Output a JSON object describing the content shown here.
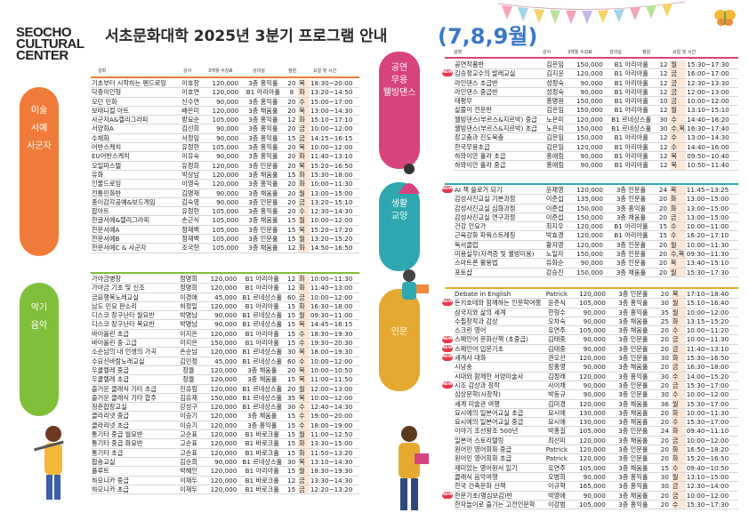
{
  "logo": [
    "SEOCHO",
    "CULTURAL",
    "CENTER"
  ],
  "title": "서초문화대학 2025년 3분기 프로그램 안내",
  "title_months": "(7,8,9월)",
  "headers": {
    "name": "강좌",
    "teacher": "강사",
    "fee": "3개월 수강료",
    "room": "강의실",
    "cap": "정원",
    "day": "요일 및 시간"
  },
  "categories": {
    "art": [
      "미술",
      "서예",
      "사군자"
    ],
    "music": [
      "악기",
      "음악"
    ],
    "perf": [
      "공연",
      "무용",
      "웰빙댄스"
    ],
    "life": [
      "생활",
      "교양"
    ],
    "hum": [
      "인문"
    ]
  },
  "new_badge": "NEW",
  "art": [
    [
      "기초부터 시작하는 펜드로잉",
      "이호창",
      "120,000",
      "3층 홍익홀",
      "20",
      "목",
      "18:30~20:00"
    ],
    [
      "닥종이인형",
      "이호연",
      "120,000",
      "B1 아리아홀",
      "8",
      "화",
      "13:20~14:50"
    ],
    [
      "모던 민화",
      "신수연",
      "90,000",
      "3층 홍익홀",
      "20",
      "수",
      "15:00~17:00"
    ],
    [
      "보태니컬 아트",
      "배은미",
      "120,000",
      "3층 채움홀",
      "20",
      "목",
      "13:00~14:30"
    ],
    [
      "사군자A&캘리그라피",
      "방묘순",
      "105,000",
      "3층 홍익홀",
      "12",
      "화",
      "15:10~17:10"
    ],
    [
      "서양화A",
      "김선희",
      "90,000",
      "3층 홍익홀",
      "20",
      "금",
      "10:00~12:00"
    ],
    [
      "수채화",
      "서정임",
      "90,000",
      "3층 홍익홀",
      "15",
      "금",
      "14:15~16:15"
    ],
    [
      "어반스케치",
      "유정현",
      "105,000",
      "3층 홍익홀",
      "20",
      "목",
      "10:00~12:00"
    ],
    [
      "EU어반스케치",
      "이유숙",
      "90,000",
      "3층 홍익홀",
      "20",
      "화",
      "11:40~13:10"
    ],
    [
      "오일파스텔",
      "유정희",
      "120,000",
      "3층 인문홀",
      "20",
      "목",
      "15:20~16:50"
    ],
    [
      "유화",
      "박상남",
      "120,000",
      "3층 채움홀",
      "15",
      "화",
      "15:30~18:00"
    ],
    [
      "인물드로잉",
      "이영숙",
      "120,000",
      "3층 홍익홀",
      "20",
      "화",
      "10:00~11:30"
    ],
    [
      "전통민화반",
      "김명재",
      "90,000",
      "3층 채움홀",
      "20",
      "월",
      "13:00~15:00"
    ],
    [
      "종이감각공예&보드게임",
      "김숙영",
      "90,000",
      "3층 인문홀",
      "20",
      "금",
      "13:20~15:10"
    ],
    [
      "팝아트",
      "유정현",
      "105,000",
      "3층 홍익홀",
      "20",
      "수",
      "12:30~14:30"
    ],
    [
      "한글서예&캘리그라피",
      "손근식",
      "105,000",
      "3층 채움홀",
      "15",
      "월",
      "10:00~12:00"
    ],
    [
      "한문서예A",
      "정재백",
      "105,000",
      "3층 인문홀",
      "15",
      "목",
      "15:20~17:20"
    ],
    [
      "한문서예B",
      "정재백",
      "105,000",
      "3층 인문홀",
      "15",
      "월",
      "13:20~15:20"
    ],
    [
      "한문서예C & 사군자",
      "조국현",
      "105,000",
      "3층 채움홀",
      "12",
      "화",
      "14:50~16:50"
    ]
  ],
  "music": [
    [
      "가야금병창",
      "정명희",
      "120,000",
      "B1 아리아홀",
      "12",
      "화",
      "10:00~11:30"
    ],
    [
      "가야금 기초 및 신조",
      "정명희",
      "120,000",
      "B1 아리아홀",
      "12",
      "화",
      "11:40~13:00"
    ],
    [
      "금요행복노래교실",
      "이경애",
      "45,000",
      "B1 르네상스홀",
      "60",
      "금",
      "10:00~12:00"
    ],
    [
      "남도 민요 판소리",
      "허정일",
      "120,000",
      "B1 아리아홀",
      "15",
      "화",
      "16:30~18:00"
    ],
    [
      "디스코 장구난타 월요반",
      "박명남",
      "90,000",
      "B1 르네상스홀",
      "15",
      "월",
      "09:30~11:00"
    ],
    [
      "디스코 장구난타 목요반",
      "박명남",
      "90,000",
      "B1 르네상스홀",
      "15",
      "목",
      "14:45~16:15"
    ],
    [
      "바이올린 초급",
      "이지은",
      "120,000",
      "B1 아리아홀",
      "15",
      "수",
      "18:30~19:30"
    ],
    [
      "바이올린 중·고급",
      "이지은",
      "150,000",
      "B1 아리아홀",
      "15",
      "수",
      "19:30~20:30"
    ],
    [
      "소순남의 내 인생의 가곡",
      "손순남",
      "120,000",
      "B1 르네상스홀",
      "30",
      "목",
      "18:00~19:30"
    ],
    [
      "수요신바람노래교실",
      "김민정",
      "45,000",
      "B1 르네상스홀",
      "60",
      "수",
      "10:00~12:00"
    ],
    [
      "우쿨렐레 중급",
      "장율",
      "120,000",
      "3층 채움홀",
      "20",
      "목",
      "10:00~10:50"
    ],
    [
      "우쿨렐레 초급",
      "장율",
      "120,000",
      "3층 채움홀",
      "15",
      "목",
      "11:00~11:50"
    ],
    [
      "즐거운 클래식 기타 초급",
      "진유림",
      "120,000",
      "B1 르네상스홀",
      "20",
      "월",
      "12:00~13:00"
    ],
    [
      "즐거운 클래식 기타 합주",
      "김유재",
      "150,000",
      "B1 르네상스홀",
      "35",
      "목",
      "10:00~12:00"
    ],
    [
      "청춘합창교실",
      "강성구",
      "120,000",
      "B1 르네상스홀",
      "30",
      "수",
      "12:40~14:30"
    ],
    [
      "클라리넷 중급",
      "이승기",
      "120,000",
      "3층 채움홀",
      "15",
      "수",
      "19:00~20:00"
    ],
    [
      "클라리넷 초급",
      "이승기",
      "120,000",
      "3층 홍익홀",
      "15",
      "수",
      "18:00~19:00"
    ],
    [
      "통기타 중급 월요반",
      "고순표",
      "120,000",
      "B1 바로크홀",
      "15",
      "월",
      "11:00~12:50"
    ],
    [
      "통기타 중급 화요반",
      "고순표",
      "120,000",
      "B1 바로크홀",
      "15",
      "화",
      "13:30~15:00"
    ],
    [
      "통기타 초급",
      "고순표",
      "120,000",
      "B1 바로크홀",
      "15",
      "화",
      "11:50~13:20"
    ],
    [
      "팝송교실",
      "김순희",
      "90,000",
      "B1 르네상스홀",
      "30",
      "목",
      "13:10~14:30"
    ],
    [
      "플루트",
      "박혜인",
      "120,000",
      "B1 아리아홀",
      "15",
      "월",
      "18:30~19:30"
    ],
    [
      "하모니카 중급",
      "이재두",
      "120,000",
      "B1 바로크홀",
      "12",
      "금",
      "13:30~14:30"
    ],
    [
      "하모니카 초급",
      "이재두",
      "120,000",
      "B1 바로크홀",
      "15",
      "금",
      "12:20~13:20"
    ]
  ],
  "perf": [
    [
      "공연작품반",
      "김은임",
      "150,000",
      "B1 아리아홀",
      "12",
      "월",
      "15:30~17:30",
      false
    ],
    [
      "김승정교수의 발레교실",
      "김지윤",
      "120,000",
      "B1 아리아홀",
      "12",
      "금",
      "16:00~17:00",
      true
    ],
    [
      "라인댄스 초급반",
      "성정숙",
      "90,000",
      "B1 아리아홀",
      "12",
      "금",
      "12:30~13:30",
      false
    ],
    [
      "라인댄스 중급반",
      "성정숙",
      "90,000",
      "B1 아리아홀",
      "12",
      "금",
      "12:00~13:00",
      false
    ],
    [
      "태평무",
      "홍명원",
      "150,000",
      "B1 아리아홀",
      "10",
      "금",
      "10:00~12:00",
      false
    ],
    [
      "살풀이 전문반",
      "김은임",
      "150,000",
      "B1 아리아홀",
      "12",
      "월",
      "13:10~15:10",
      false
    ],
    [
      "웰빙댄스(부르스&지르박) 중급",
      "노은미",
      "120,000",
      "B1 르네상스홀",
      "30",
      "수",
      "14:40~16:20",
      false
    ],
    [
      "웰빙댄스(부르스&지르박) 초급",
      "노은미",
      "150,000",
      "B1 르네상스홀",
      "30",
      "수,목",
      "16:30~17:40",
      false
    ],
    [
      "장고춤과 진도북춤",
      "김은임",
      "150,000",
      "B1 아리아홀",
      "12",
      "수",
      "13:00~14:30",
      false
    ],
    [
      "한국무용초급",
      "김은임",
      "120,000",
      "B1 아리아홀",
      "12",
      "수",
      "14:40~16:00",
      false
    ],
    [
      "하와이안 훌라 초급",
      "홍애림",
      "90,000",
      "B1 아리아홀",
      "12",
      "목",
      "09:50~10:40",
      false
    ],
    [
      "하와이안 훌라 중급",
      "홍애림",
      "90,000",
      "B1 아리아홀",
      "12",
      "목",
      "10:50~11:40",
      false
    ]
  ],
  "life": [
    [
      "AI 책 쓸로거 되기",
      "윤재영",
      "120,000",
      "3층 인문홀",
      "24",
      "목",
      "11:45~13:25",
      true
    ],
    [
      "감성사진교실 기본과정",
      "이준섭",
      "135,000",
      "3층 인문홀",
      "20",
      "화",
      "13:00~15:00",
      false
    ],
    [
      "감성사진교실 심화과정",
      "이준섭",
      "150,000",
      "3층 홍익홀",
      "20",
      "화",
      "13:00~15:00",
      false
    ],
    [
      "감성사진교실 연구과정",
      "이준섭",
      "150,000",
      "3층 채움홀",
      "20",
      "금",
      "13:00~15:00",
      false
    ],
    [
      "건강 인요가",
      "최지우",
      "120,000",
      "B1 아리아홀",
      "15",
      "수",
      "10:00~11:00",
      false
    ],
    [
      "근육강화 파워스트레칭",
      "박효경",
      "120,000",
      "B1 아리아홀",
      "15",
      "수",
      "16:20~17:10",
      false
    ],
    [
      "독서클럽",
      "황지영",
      "120,000",
      "3층 인문홀",
      "20",
      "월",
      "10:00~11:30",
      false
    ],
    [
      "미용실무(자격증 및 웰빙미용)",
      "노일자",
      "150,000",
      "3층 인문홀",
      "20",
      "수,목",
      "09:30~11:30",
      false
    ],
    [
      "스마트폰 활용법",
      "유화순",
      "90,000",
      "3층 인문홀",
      "20",
      "목",
      "13:40~15:10",
      false
    ],
    [
      "포토샵",
      "강승진",
      "150,000",
      "3층 채움홀",
      "20",
      "월",
      "15:30~17:30",
      false
    ]
  ],
  "hum": [
    [
      "Debate in English",
      "Patrick",
      "120,000",
      "3층 인문홀",
      "20",
      "목",
      "17:10~18:40",
      false
    ],
    [
      "돈키호테와 함께하는 인문학여행",
      "윤준식",
      "105,000",
      "3층 홍익홀",
      "30",
      "월",
      "15:10~16:40",
      true
    ],
    [
      "삼국지와 삶의 세계",
      "한형수",
      "90,000",
      "3층 홍익홀",
      "35",
      "월",
      "10:00~12:00",
      false
    ],
    [
      "수필창작과 감상",
      "오차숙",
      "90,000",
      "3층 채움홀",
      "25",
      "화",
      "13:15~15:20",
      false
    ],
    [
      "스크린 영어",
      "유연주",
      "105,000",
      "3층 채움홀",
      "20",
      "수",
      "10:00~11:20",
      false
    ],
    [
      "스페인어 문화산책 (초중급)",
      "김태중",
      "90,000",
      "3층 인문홀",
      "20",
      "금",
      "10:00~11:30",
      true
    ],
    [
      "스페인어 입문기초",
      "김태중",
      "90,000",
      "3층 인문홀",
      "20",
      "금",
      "11:40~13:10",
      true
    ],
    [
      "세계사 대화",
      "권오선",
      "120,000",
      "3층 인문홀",
      "30",
      "화",
      "15:30~16:50",
      true
    ],
    [
      "시낭송",
      "장홍영",
      "90,000",
      "3층 채움홀",
      "20",
      "금",
      "16:30~18:00",
      false
    ],
    [
      "시대와 함께한 서양미술사",
      "김정래",
      "120,000",
      "3층 홍익홀",
      "30",
      "수",
      "14:00~15:20",
      false
    ],
    [
      "시조 감상과 창작",
      "사이채",
      "90,000",
      "3층 인문홀",
      "20",
      "금",
      "15:30~17:00",
      true
    ],
    [
      "심상문학(시창작)",
      "박동규",
      "90,000",
      "3층 인문홀",
      "30",
      "수",
      "10:00~12:00",
      false
    ],
    [
      "세계 미술관 여행",
      "김미경",
      "120,000",
      "3층 채움홀",
      "36",
      "월",
      "15:30~17:00",
      false
    ],
    [
      "요시에의 일본어교실 초급",
      "요시에",
      "130,000",
      "3층 채움홀",
      "20",
      "화",
      "10:00~11:30",
      false
    ],
    [
      "요시에의 일본어교실 중급",
      "요시에",
      "130,000",
      "3층 채움홀",
      "20",
      "수",
      "15:30~17:00",
      false
    ],
    [
      "이야기 조선왕조 500년",
      "박홍길",
      "105,000",
      "3층 인문홀",
      "24",
      "화",
      "09:40~11:10",
      false
    ],
    [
      "일본어 스토리텔링",
      "최선미",
      "120,000",
      "3층 채움홀",
      "20",
      "금",
      "10:00~12:00",
      false
    ],
    [
      "원어민 영어회화 중급",
      "Patrick",
      "120,000",
      "3층 인문홀",
      "20",
      "화",
      "16:50~18:20",
      false
    ],
    [
      "원어민 영어회화 초급",
      "Patrick",
      "120,000",
      "3층 인문홀",
      "20",
      "화",
      "15:20~16:50",
      false
    ],
    [
      "재미있는 영어원서 읽기",
      "유연주",
      "105,000",
      "3층 채움홀",
      "15",
      "수",
      "09:40~10:50",
      false
    ],
    [
      "클래식 음악여행",
      "오병희",
      "90,000",
      "3층 홍익홀",
      "30",
      "월",
      "13:10~15:00",
      false
    ],
    [
      "한국 건축문화 산책",
      "이규혁",
      "165,000",
      "3층 홍익홀",
      "30",
      "금",
      "12:30~14:00",
      false
    ],
    [
      "한문기초(명심보감)반",
      "박영애",
      "90,000",
      "3층 채움홀",
      "20",
      "금",
      "10:00~12:00",
      true
    ],
    [
      "한자놀이로 즐기는 고전인문학",
      "이강범",
      "105,000",
      "3층 홍익홀",
      "20",
      "수",
      "15:30~17:30",
      false
    ]
  ]
}
